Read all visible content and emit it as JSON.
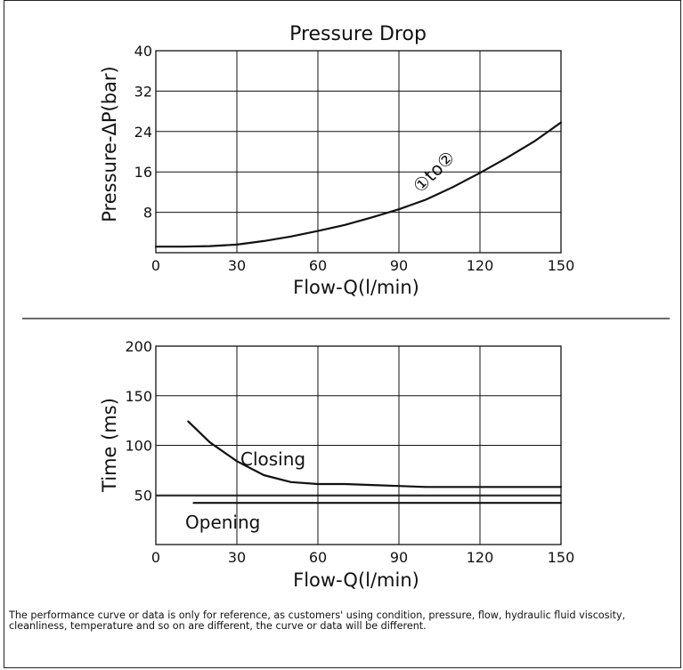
{
  "chart_data": [
    {
      "type": "line",
      "title": "Pressure Drop",
      "xlabel": "Flow-Q(l/min)",
      "ylabel": "Pressure-ΔP(bar)",
      "xlim": [
        0,
        150
      ],
      "ylim": [
        0,
        40
      ],
      "xticks": [
        "0",
        "30",
        "60",
        "90",
        "120",
        "150"
      ],
      "yticks": [
        "8",
        "16",
        "24",
        "32",
        "40"
      ],
      "grid": true,
      "series": [
        {
          "name": "①to②",
          "x": [
            0,
            10,
            20,
            30,
            40,
            50,
            60,
            70,
            80,
            90,
            100,
            110,
            120,
            130,
            140,
            150
          ],
          "y": [
            1.2,
            1.2,
            1.3,
            1.6,
            2.3,
            3.2,
            4.3,
            5.5,
            7.0,
            8.6,
            10.5,
            13.0,
            15.8,
            18.8,
            22.0,
            25.8
          ]
        }
      ],
      "annotations": [
        "①to②"
      ]
    },
    {
      "type": "line",
      "title": "",
      "xlabel": "Flow-Q(l/min)",
      "ylabel": "Time (ms)",
      "xlim": [
        0,
        150
      ],
      "ylim": [
        0,
        200
      ],
      "xticks": [
        "0",
        "30",
        "60",
        "90",
        "120",
        "150"
      ],
      "yticks": [
        "50",
        "100",
        "150",
        "200"
      ],
      "grid": true,
      "series": [
        {
          "name": "Closing",
          "x": [
            12,
            20,
            30,
            40,
            50,
            60,
            70,
            80,
            90,
            100,
            110,
            120,
            130,
            140,
            150
          ],
          "y": [
            124,
            103,
            84,
            70,
            63,
            61,
            61,
            60,
            59,
            58,
            58,
            58,
            58,
            58,
            58
          ]
        },
        {
          "name": "Opening",
          "x": [
            14,
            150
          ],
          "y": [
            42,
            42
          ]
        }
      ],
      "extra_hlines": [
        49
      ],
      "annotations": [
        "Closing",
        "Opening"
      ]
    }
  ],
  "disclaimer": "The performance curve or data is only for reference, as customers' using condition, pressure, flow, hydraulic fluid viscosity, cleanliness, temperature and so on are different, the curve or data will be different."
}
